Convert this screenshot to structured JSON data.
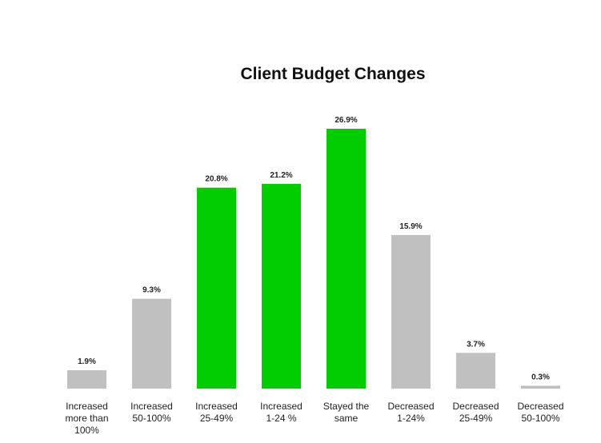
{
  "chart_data": {
    "type": "bar",
    "title": "Client Budget Changes",
    "xlabel": "",
    "ylabel": "",
    "ylim": [
      0,
      26.9
    ],
    "grid": false,
    "legend": "none",
    "categories": [
      [
        "Increased",
        "more than",
        "100%"
      ],
      [
        "Increased",
        "50-100%"
      ],
      [
        "Increased",
        "25-49%"
      ],
      [
        "Increased",
        "1-24 %"
      ],
      [
        "Stayed the",
        "same"
      ],
      [
        "Decreased",
        "1-24%"
      ],
      [
        "Decreased",
        "25-49%"
      ],
      [
        "Decreased",
        "50-100%"
      ]
    ],
    "values": [
      1.9,
      9.3,
      20.8,
      21.2,
      26.9,
      15.9,
      3.7,
      0.3
    ],
    "value_labels": [
      "1.9%",
      "9.3%",
      "20.8%",
      "21.2%",
      "26.9%",
      "15.9%",
      "3.7%",
      "0.3%"
    ],
    "bar_colors": [
      "#c0c0c0",
      "#c0c0c0",
      "#00cc00",
      "#00cc00",
      "#00cc00",
      "#c0c0c0",
      "#c0c0c0",
      "#c0c0c0"
    ]
  }
}
